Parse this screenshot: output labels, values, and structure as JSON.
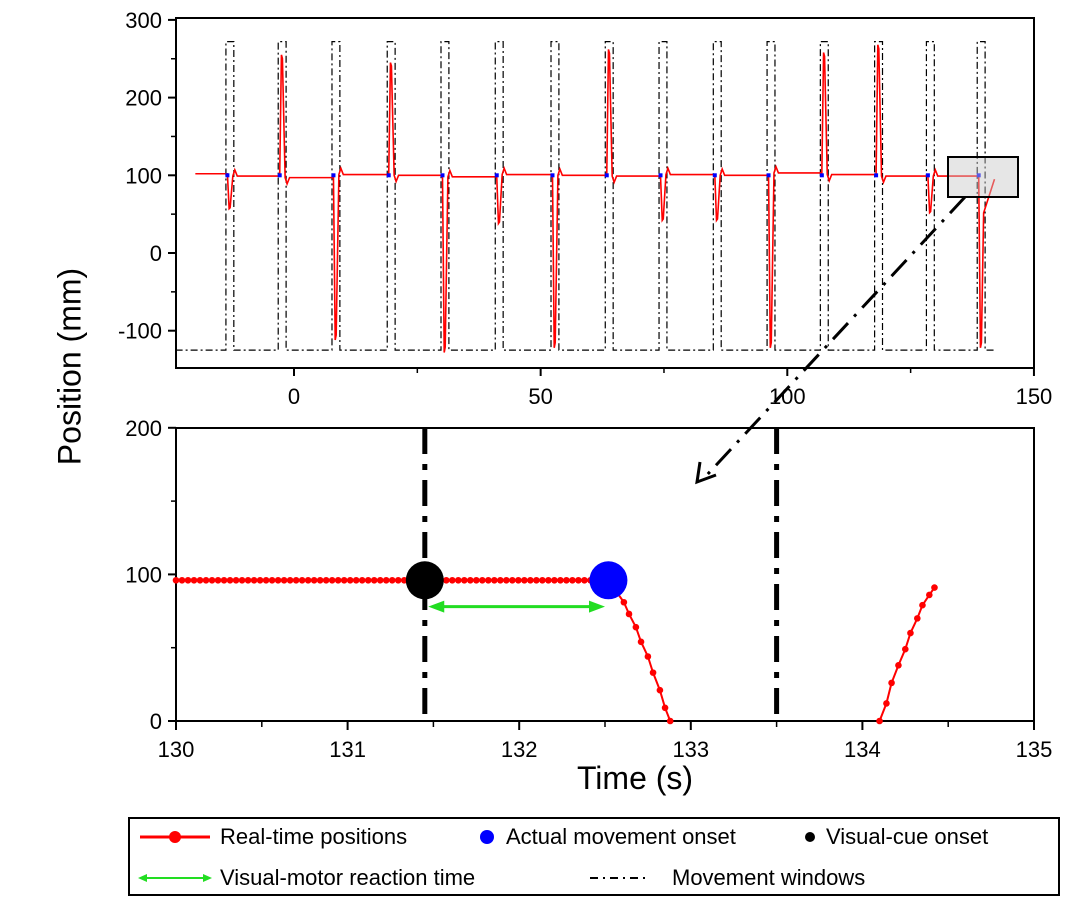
{
  "chart_data": [
    {
      "type": "line",
      "name": "overview",
      "xlim": [
        -24,
        150
      ],
      "ylim": [
        -148,
        303
      ],
      "xticks": [
        0,
        50,
        100,
        150
      ],
      "yticks": [
        -100,
        0,
        100,
        200,
        300
      ],
      "xlabel": "Time (s)",
      "ylabel": "Position (mm)",
      "movement_windows": {
        "low": -125,
        "high": 272,
        "duration": 1.6,
        "starts": [
          -13.8,
          -3.2,
          7.7,
          18.9,
          29.8,
          40.8,
          52.1,
          63.1,
          74.0,
          85.0,
          95.9,
          106.7,
          117.7,
          128.2,
          138.5
        ]
      },
      "real_time_positions": {
        "start_time": -20,
        "end_time": 142,
        "initial_baseline": 102,
        "peaks": [
          57,
          255,
          -112,
          245,
          -128,
          38,
          -122,
          262,
          42,
          42,
          -122,
          258,
          268,
          52,
          -122
        ],
        "baselines_after": [
          99,
          97,
          101,
          100,
          98,
          101,
          100,
          99,
          101,
          100,
          103,
          101,
          99,
          99,
          95
        ]
      }
    },
    {
      "type": "line",
      "name": "zoomed-detail",
      "xlim": [
        130,
        135
      ],
      "ylim": [
        0,
        200
      ],
      "xticks": [
        130,
        131,
        132,
        133,
        134,
        135
      ],
      "yticks": [
        0,
        100,
        200
      ],
      "xlabel": "Time (s)",
      "ylabel": "Position (mm)",
      "movement_windows": [
        131.45,
        133.5
      ],
      "real_time_positions": {
        "flat": {
          "from": 130.0,
          "to": 132.55,
          "step": 0.035,
          "value": 96
        },
        "descent": [
          [
            132.61,
            81
          ],
          [
            132.64,
            73
          ],
          [
            132.68,
            64
          ],
          [
            132.71,
            54
          ],
          [
            132.75,
            44
          ],
          [
            132.78,
            33
          ],
          [
            132.82,
            21
          ],
          [
            132.85,
            9
          ],
          [
            132.88,
            0
          ]
        ],
        "rise": [
          [
            134.1,
            0
          ],
          [
            134.14,
            12
          ],
          [
            134.17,
            26
          ],
          [
            134.21,
            38
          ],
          [
            134.25,
            49
          ],
          [
            134.28,
            60
          ],
          [
            134.32,
            70
          ],
          [
            134.35,
            79
          ],
          [
            134.39,
            86
          ],
          [
            134.42,
            91
          ]
        ]
      },
      "visual_cue_onset": [
        131.45,
        96
      ],
      "actual_movement_onset": [
        132.52,
        96
      ],
      "reaction_time_arrow": {
        "from": 131.47,
        "to": 132.5,
        "y": 78
      }
    }
  ],
  "legend": {
    "real_time": "Real-time positions",
    "actual_onset": "Actual movement onset",
    "visual_cue": "Visual-cue onset",
    "reaction_time": "Visual-motor reaction time",
    "windows": "Movement windows"
  },
  "colors": {
    "red": "#ff0000",
    "blue": "#0000ff",
    "black": "#000000",
    "green": "#22dd22"
  }
}
